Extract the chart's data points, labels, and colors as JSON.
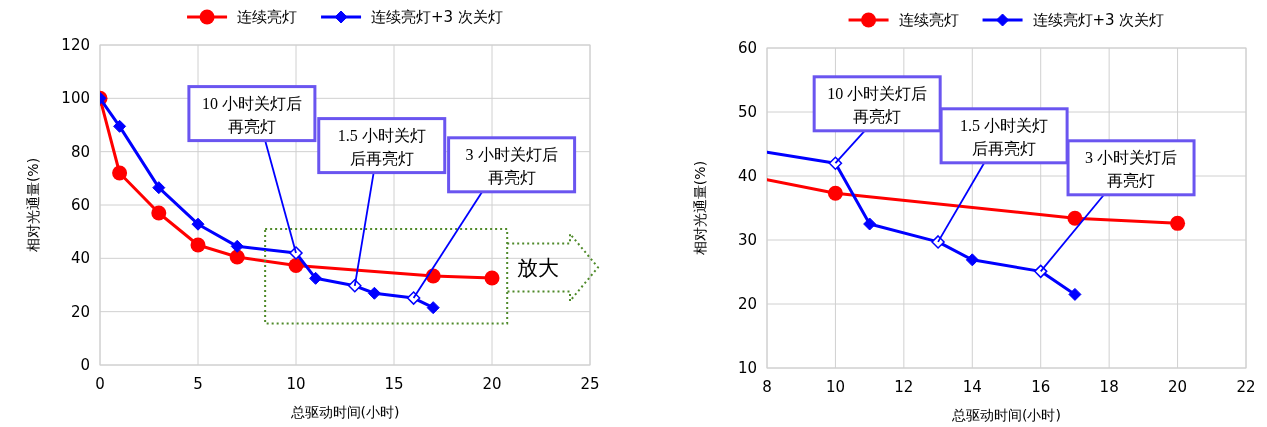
{
  "chart_data": [
    {
      "type": "line",
      "xlabel": "总驱动时间(小时)",
      "ylabel": "相对光通量(%)",
      "xlim": [
        0,
        25
      ],
      "xticks": [
        0,
        5,
        10,
        15,
        20,
        25
      ],
      "ylim": [
        0,
        120
      ],
      "yticks": [
        0,
        20,
        40,
        60,
        80,
        100,
        120
      ],
      "grid": true,
      "legend": "top",
      "series": [
        {
          "name": "连续亮灯",
          "color": "#ff0000",
          "marker": "circle",
          "x": [
            0,
            1,
            3,
            5,
            7,
            10,
            17,
            20
          ],
          "values": [
            100,
            72,
            57,
            45,
            40.5,
            37.3,
            33.4,
            32.6
          ]
        },
        {
          "name": "连续亮灯+3 次关灯",
          "color": "#0000ff",
          "marker": "diamond",
          "x": [
            0,
            1,
            3,
            5,
            7,
            10,
            11,
            13,
            14,
            16,
            17
          ],
          "values": [
            100,
            89.5,
            66.5,
            52.8,
            44.5,
            42,
            32.5,
            29.7,
            26.9,
            25.1,
            21.5
          ]
        }
      ],
      "annotations": [
        {
          "text": "10 小时关灯后再亮灯",
          "x": 10,
          "y": 42
        },
        {
          "text": "1.5 小时关灯后再亮灯",
          "x": 13,
          "y": 29.7
        },
        {
          "text": "3 小时关灯后再亮灯",
          "x": 16,
          "y": 25.1
        },
        "放大"
      ]
    },
    {
      "type": "line",
      "xlabel": "总驱动时间(小时)",
      "ylabel": "相对光通量(%)",
      "xlim": [
        8,
        22
      ],
      "xticks": [
        8,
        10,
        12,
        14,
        16,
        18,
        20,
        22
      ],
      "ylim": [
        10,
        60
      ],
      "yticks": [
        10,
        20,
        30,
        40,
        50,
        60
      ],
      "grid": true,
      "legend": "top",
      "series": [
        {
          "color": "#ff0000",
          "x": [
            8,
            10
          ],
          "values": [
            39.4,
            37.3
          ]
        },
        {
          "color": "#0000ff",
          "x": [
            8,
            10
          ],
          "values": [
            43.7,
            42
          ]
        },
        {
          "name": "连续亮灯",
          "color": "#ff0000",
          "marker": "circle",
          "x": [
            10,
            17,
            20
          ],
          "values": [
            37.3,
            33.4,
            32.6
          ]
        },
        {
          "name": "连续亮灯+3 次关灯",
          "color": "#0000ff",
          "marker": "diamond",
          "x": [
            10,
            11,
            13,
            14,
            16,
            17
          ],
          "values": [
            42,
            32.5,
            29.7,
            26.9,
            25.1,
            21.5
          ]
        }
      ],
      "annotations": [
        {
          "text": "10 小时关灯后再亮灯",
          "x": 10,
          "y": 42
        },
        {
          "text": "1.5 小时关灯后再亮灯",
          "x": 13,
          "y": 29.7
        },
        {
          "text": "3 小时关灯后再亮灯",
          "x": 16,
          "y": 25.1
        }
      ]
    }
  ]
}
